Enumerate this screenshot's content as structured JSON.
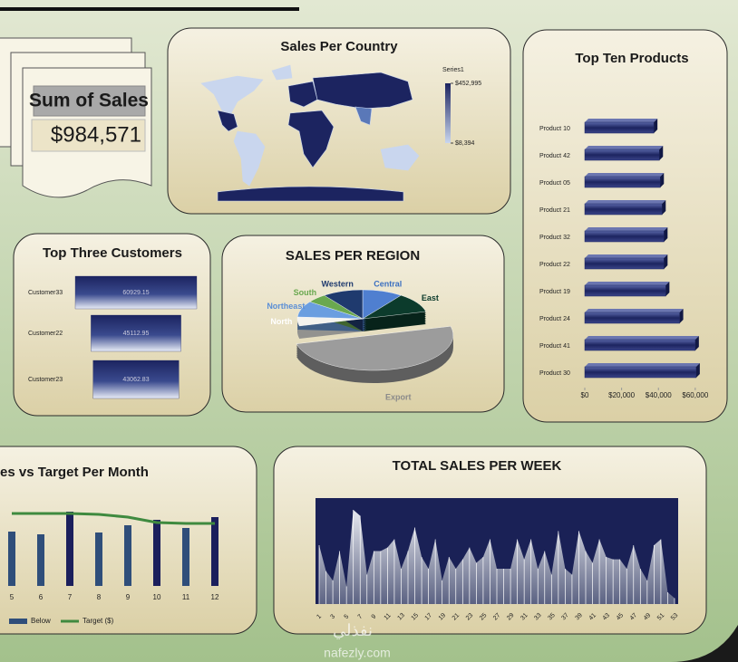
{
  "kpi": {
    "title": "Sum of Sales",
    "value": "$984,571"
  },
  "watermark": [
    "نفذلي",
    "nafezly.com"
  ],
  "chart_data": [
    {
      "type": "map",
      "title": "Sales Per Country",
      "legend_title": "Series1",
      "colorbar_ticks": [
        {
          "value": 452995,
          "label": "$452,995"
        },
        {
          "value": 8394,
          "label": "$8,394"
        }
      ],
      "color_range": [
        "#1c2460",
        "#c9d6ee"
      ]
    },
    {
      "type": "barh",
      "title": "Top Ten Products",
      "categories": [
        "Product 10",
        "Product 42",
        "Product 05",
        "Product 21",
        "Product 32",
        "Product 22",
        "Product 19",
        "Product 24",
        "Product 41",
        "Product 30"
      ],
      "values": [
        37500,
        40500,
        41000,
        42000,
        43000,
        43000,
        44000,
        51500,
        60000,
        60500
      ],
      "color": "#1c2460",
      "xlim": [
        0,
        65000
      ],
      "xticks": [
        {
          "value": 0,
          "label": "$0"
        },
        {
          "value": 20000,
          "label": "$20,000"
        },
        {
          "value": 40000,
          "label": "$40,000"
        },
        {
          "value": 60000,
          "label": "$60,000"
        }
      ]
    },
    {
      "type": "funnel",
      "title": "Top Three Customers",
      "categories": [
        "Customer33",
        "Customer22",
        "Customer23"
      ],
      "values": [
        60929.15,
        45112.95,
        43062.83
      ],
      "color": "#1c2460"
    },
    {
      "type": "pie",
      "title": "SALES PER REGION",
      "categories": [
        "Central",
        "East",
        "Export",
        "North",
        "Northeast",
        "South",
        "Western"
      ],
      "values": [
        10,
        11,
        50,
        5,
        9,
        5,
        10
      ],
      "colors": [
        "#4f7fd0",
        "#0c3b2c",
        "#9c9c9c",
        "#f4f3ee",
        "#6a9ee0",
        "#6aa84f",
        "#1f3a6e"
      ],
      "label_colors": [
        "#3b6fc0",
        "#0c3b2c",
        "#8a8a8a",
        "#ffffff",
        "#5b8fd6",
        "#6aa84f",
        "#1f3a6e"
      ]
    },
    {
      "type": "bar",
      "title": "es vs Target Per Month",
      "categories": [
        "5",
        "6",
        "7",
        "8",
        "9",
        "10",
        "11",
        "12"
      ],
      "series": [
        {
          "name": "Below",
          "color": "#2f4e7a",
          "values": [
            60,
            57,
            null,
            59,
            67,
            null,
            64,
            null
          ]
        },
        {
          "color": "#1b1f5c",
          "values": [
            null,
            null,
            82,
            null,
            null,
            73,
            null,
            76
          ]
        },
        {
          "name": "Target ($)",
          "type": "line",
          "color": "#3f8a3f",
          "values": [
            80,
            80,
            80,
            79,
            76,
            70,
            69,
            69
          ]
        }
      ]
    },
    {
      "type": "area",
      "title": "TOTAL SALES PER WEEK",
      "categories": [
        "1",
        null,
        "3",
        null,
        "5",
        null,
        "7",
        null,
        "9",
        null,
        "11",
        null,
        "13",
        null,
        "15",
        null,
        "17",
        null,
        "19",
        null,
        "21",
        null,
        "23",
        null,
        "25",
        null,
        "27",
        null,
        "29",
        null,
        "31",
        null,
        "33",
        null,
        "35",
        null,
        "37",
        null,
        "39",
        null,
        "41",
        null,
        "43",
        null,
        "45",
        null,
        "47",
        null,
        "49",
        null,
        "51",
        null,
        "53"
      ],
      "values": [
        50,
        28,
        20,
        45,
        15,
        80,
        75,
        25,
        45,
        45,
        48,
        55,
        30,
        45,
        65,
        40,
        30,
        55,
        20,
        40,
        30,
        38,
        48,
        35,
        40,
        55,
        30,
        30,
        30,
        55,
        38,
        55,
        30,
        45,
        25,
        62,
        30,
        25,
        62,
        45,
        35,
        55,
        40,
        38,
        38,
        30,
        50,
        30,
        20,
        50,
        55,
        10,
        5
      ],
      "color": "#1a2156"
    }
  ]
}
